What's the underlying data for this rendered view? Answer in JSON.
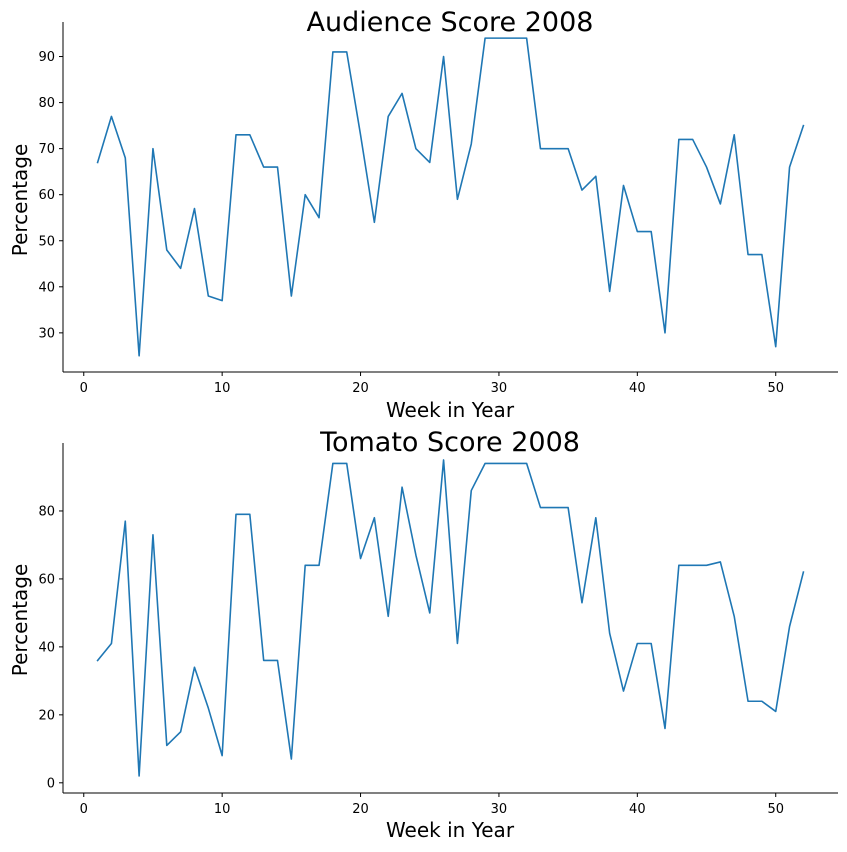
{
  "figure": {
    "background": "#ffffff",
    "line_color": "#1f77b4"
  },
  "chart_data": [
    {
      "type": "line",
      "title": "Audience Score 2008",
      "xlabel": "Week in Year",
      "ylabel": "Percentage",
      "xlim": [
        -1.5,
        54.5
      ],
      "ylim": [
        21.5,
        97.5
      ],
      "xticks": [
        0,
        10,
        20,
        30,
        40,
        50
      ],
      "yticks": [
        30,
        40,
        50,
        60,
        70,
        80,
        90
      ],
      "grid": false,
      "x": [
        1,
        2,
        3,
        4,
        5,
        6,
        7,
        8,
        9,
        10,
        11,
        12,
        13,
        14,
        15,
        16,
        17,
        18,
        19,
        20,
        21,
        22,
        23,
        24,
        25,
        26,
        27,
        28,
        29,
        30,
        31,
        32,
        33,
        34,
        35,
        36,
        37,
        38,
        39,
        40,
        41,
        42,
        43,
        44,
        45,
        46,
        47,
        48,
        49,
        50,
        51,
        52
      ],
      "values": [
        67,
        77,
        68,
        25,
        70,
        48,
        44,
        57,
        38,
        37,
        73,
        73,
        66,
        66,
        38,
        60,
        55,
        91,
        91,
        73,
        54,
        77,
        82,
        70,
        67,
        90,
        59,
        71,
        94,
        94,
        94,
        94,
        70,
        70,
        70,
        61,
        64,
        39,
        62,
        52,
        52,
        30,
        72,
        72,
        66,
        58,
        73,
        47,
        47,
        27,
        66,
        75
      ]
    },
    {
      "type": "line",
      "title": "Tomato Score 2008",
      "xlabel": "Week in Year",
      "ylabel": "Percentage",
      "xlim": [
        -1.5,
        54.5
      ],
      "ylim": [
        -3,
        100
      ],
      "xticks": [
        0,
        10,
        20,
        30,
        40,
        50
      ],
      "yticks": [
        0,
        20,
        40,
        60,
        80
      ],
      "grid": false,
      "x": [
        1,
        2,
        3,
        4,
        5,
        6,
        7,
        8,
        9,
        10,
        11,
        12,
        13,
        14,
        15,
        16,
        17,
        18,
        19,
        20,
        21,
        22,
        23,
        24,
        25,
        26,
        27,
        28,
        29,
        30,
        31,
        32,
        33,
        34,
        35,
        36,
        37,
        38,
        39,
        40,
        41,
        42,
        43,
        44,
        45,
        46,
        47,
        48,
        49,
        50,
        51,
        52
      ],
      "values": [
        36,
        41,
        77,
        2,
        73,
        11,
        15,
        34,
        22,
        8,
        79,
        79,
        36,
        36,
        7,
        64,
        64,
        94,
        94,
        66,
        78,
        49,
        87,
        67,
        50,
        95,
        41,
        86,
        94,
        94,
        94,
        94,
        81,
        81,
        81,
        53,
        78,
        44,
        27,
        41,
        41,
        16,
        64,
        64,
        64,
        65,
        49,
        24,
        24,
        21,
        46,
        62
      ]
    }
  ]
}
